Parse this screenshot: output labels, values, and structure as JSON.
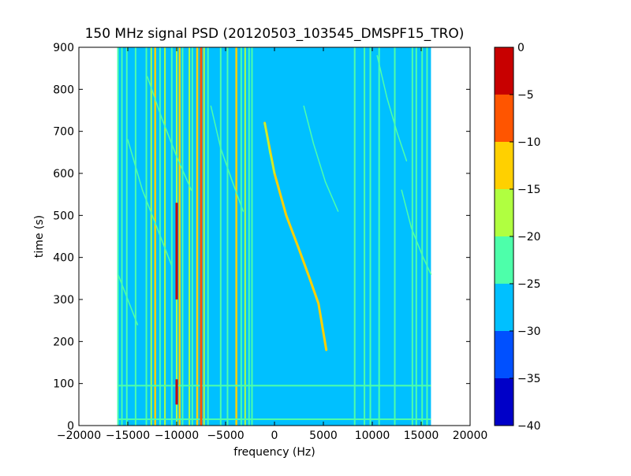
{
  "chart_data": {
    "type": "heatmap",
    "title": "150 MHz signal PSD (20120503_103545_DMSPF15_TRO)",
    "xlabel": "frequency (Hz)",
    "ylabel": "time (s)",
    "xlim": [
      -20000,
      20000
    ],
    "ylim": [
      0,
      900
    ],
    "xticks": [
      -20000,
      -15000,
      -10000,
      -5000,
      0,
      5000,
      10000,
      15000,
      20000
    ],
    "xtick_labels": [
      "−20000",
      "−15000",
      "−10000",
      "−5000",
      "0",
      "5000",
      "10000",
      "15000",
      "20000"
    ],
    "yticks": [
      0,
      100,
      200,
      300,
      400,
      500,
      600,
      700,
      800,
      900
    ],
    "ytick_labels": [
      "0",
      "100",
      "200",
      "300",
      "400",
      "500",
      "600",
      "700",
      "800",
      "900"
    ],
    "data_extent": {
      "freq": [
        -16000,
        16000
      ],
      "time": [
        0,
        900
      ]
    },
    "background_level": -27.5,
    "colorbar": {
      "levels": [
        -40,
        -35,
        -30,
        -25,
        -20,
        -15,
        -10,
        -5,
        0
      ],
      "tick_labels": [
        "−40",
        "−35",
        "−30",
        "−25",
        "−20",
        "−15",
        "−10",
        "−5",
        "0"
      ],
      "colors": [
        "#0000c8",
        "#0050ff",
        "#00c0ff",
        "#4dffaa",
        "#b0ff40",
        "#ffd000",
        "#ff5500",
        "#c80000"
      ]
    },
    "tones": [
      {
        "freq": -16000,
        "level": -22.5
      },
      {
        "freq": -15600,
        "level": -22.5
      },
      {
        "freq": -15100,
        "level": -22.5
      },
      {
        "freq": -14200,
        "level": -22.5
      },
      {
        "freq": -13100,
        "level": -22.5
      },
      {
        "freq": -12600,
        "level": -17.5
      },
      {
        "freq": -12200,
        "level": -12.5
      },
      {
        "freq": -11700,
        "level": -22.5
      },
      {
        "freq": -11200,
        "level": -17.5
      },
      {
        "freq": -10500,
        "level": -22.5
      },
      {
        "freq": -10000,
        "level": -17.5
      },
      {
        "freq": -9700,
        "level": -12.5
      },
      {
        "freq": -9400,
        "level": -22.5
      },
      {
        "freq": -8700,
        "level": -17.5
      },
      {
        "freq": -8400,
        "level": -22.5
      },
      {
        "freq": -7900,
        "level": -12.5
      },
      {
        "freq": -7500,
        "level": -7.5
      },
      {
        "freq": -7200,
        "level": -17.5
      },
      {
        "freq": -6800,
        "level": -22.5
      },
      {
        "freq": -5500,
        "level": -22.5
      },
      {
        "freq": -4800,
        "level": -22.5
      },
      {
        "freq": -3900,
        "level": -12.5
      },
      {
        "freq": -3400,
        "level": -22.5
      },
      {
        "freq": -3000,
        "level": -17.5
      },
      {
        "freq": -2600,
        "level": -22.5
      },
      {
        "freq": -2300,
        "level": -22.5
      },
      {
        "freq": 8200,
        "level": -22.5
      },
      {
        "freq": 9200,
        "level": -22.5
      },
      {
        "freq": 9800,
        "level": -22.5
      },
      {
        "freq": 10700,
        "level": -22.5
      },
      {
        "freq": 12300,
        "level": -22.5
      },
      {
        "freq": 14100,
        "level": -22.5
      },
      {
        "freq": 14500,
        "level": -22.5
      },
      {
        "freq": 15100,
        "level": -22.5
      },
      {
        "freq": 15600,
        "level": -22.5
      }
    ],
    "peaks": [
      {
        "freq": -10000,
        "time": [
          300,
          530
        ],
        "level": -2.5
      },
      {
        "freq": -10000,
        "time": [
          50,
          110
        ],
        "level": -2.5
      },
      {
        "freq": -7500,
        "time": [
          0,
          900
        ],
        "level": -7.5
      }
    ],
    "chirps": [
      {
        "points": [
          [
            -1000,
            720
          ],
          [
            0,
            600
          ],
          [
            1200,
            500
          ],
          [
            2500,
            420
          ],
          [
            3600,
            350
          ],
          [
            4500,
            290
          ],
          [
            5300,
            180
          ]
        ],
        "level": -12.5
      },
      {
        "points": [
          [
            -1000,
            720
          ],
          [
            -500,
            650
          ],
          [
            0,
            600
          ]
        ],
        "level": -17.5
      },
      {
        "points": [
          [
            -15000,
            680
          ],
          [
            -13500,
            560
          ],
          [
            -12000,
            470
          ],
          [
            -10500,
            380
          ]
        ],
        "level": -22.5
      },
      {
        "points": [
          [
            -13000,
            830
          ],
          [
            -11500,
            730
          ],
          [
            -10000,
            640
          ],
          [
            -8500,
            560
          ]
        ],
        "level": -22.5
      },
      {
        "points": [
          [
            -6500,
            760
          ],
          [
            -5500,
            660
          ],
          [
            -4300,
            580
          ],
          [
            -3200,
            510
          ]
        ],
        "level": -22.5
      },
      {
        "points": [
          [
            3000,
            760
          ],
          [
            4000,
            670
          ],
          [
            5200,
            580
          ],
          [
            6500,
            510
          ]
        ],
        "level": -22.5
      },
      {
        "points": [
          [
            10500,
            880
          ],
          [
            11500,
            780
          ],
          [
            12500,
            700
          ],
          [
            13500,
            630
          ]
        ],
        "level": -22.5
      },
      {
        "points": [
          [
            13000,
            560
          ],
          [
            14000,
            470
          ],
          [
            15200,
            400
          ],
          [
            16000,
            360
          ]
        ],
        "level": -22.5
      },
      {
        "points": [
          [
            -16000,
            360
          ],
          [
            -15000,
            300
          ],
          [
            -14000,
            240
          ]
        ],
        "level": -22.5
      }
    ],
    "time_lines": [
      {
        "time": 95,
        "freq": [
          -16000,
          16000
        ],
        "level": -22.5
      },
      {
        "time": 15,
        "freq": [
          -16000,
          16000
        ],
        "level": -22.5
      }
    ]
  }
}
